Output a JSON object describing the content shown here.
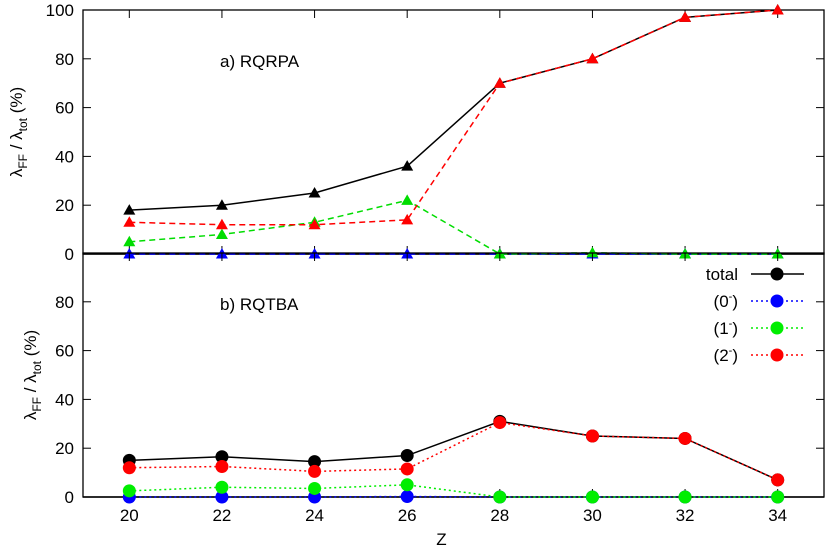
{
  "chart_data": [
    {
      "type": "line",
      "title": "a) RQRPA",
      "xlabel": "",
      "ylabel": "λ_FF / λ_tot (%)",
      "ylabel_main": "λ",
      "ylabel_sub1": "FF",
      "ylabel_mid": " / λ",
      "ylabel_sub2": "tot",
      "ylabel_tail": " (%)",
      "xlim": [
        19,
        35
      ],
      "ylim": [
        0,
        100
      ],
      "yticks": [
        0,
        20,
        40,
        60,
        80,
        100
      ],
      "marker": "triangle",
      "line_style": "dashed",
      "series": [
        {
          "key": "total",
          "color": "#000000",
          "x": [
            20,
            22,
            24,
            26,
            28,
            30,
            32,
            34
          ],
          "values": [
            18,
            20,
            25,
            36,
            70,
            80,
            97,
            100
          ]
        },
        {
          "key": "0-",
          "color": "#0000ff",
          "x": [
            20,
            22,
            24,
            26,
            28,
            30,
            32,
            34
          ],
          "values": [
            0,
            0,
            0,
            0,
            0,
            0,
            0,
            0
          ]
        },
        {
          "key": "1-",
          "color": "#00dd00",
          "x": [
            20,
            22,
            24,
            26,
            28,
            30,
            32,
            34
          ],
          "values": [
            5,
            8,
            13,
            22,
            0,
            0.5,
            0,
            0
          ]
        },
        {
          "key": "2-",
          "color": "#ff0000",
          "x": [
            20,
            22,
            24,
            26,
            28,
            30,
            32,
            34
          ],
          "values": [
            13,
            12,
            12,
            14,
            70,
            80,
            97,
            100
          ]
        }
      ]
    },
    {
      "type": "line",
      "title": "b) RQTBA",
      "xlabel": "Z",
      "ylabel": "λ_FF / λ_tot (%)",
      "ylabel_main": "λ",
      "ylabel_sub1": "FF",
      "ylabel_mid": " / λ",
      "ylabel_sub2": "tot",
      "ylabel_tail": " (%)",
      "xlim": [
        19,
        35
      ],
      "ylim": [
        0,
        100
      ],
      "xticks": [
        20,
        22,
        24,
        26,
        28,
        30,
        32,
        34
      ],
      "yticks": [
        0,
        20,
        40,
        60,
        80
      ],
      "marker": "circle",
      "line_style": "dotted",
      "legend_position": "top-right",
      "series": [
        {
          "key": "total",
          "name": "total",
          "name_main": "total",
          "name_sup": "",
          "name_tail": "",
          "color": "#000000",
          "x": [
            20,
            22,
            24,
            26,
            28,
            30,
            32,
            34
          ],
          "values": [
            15,
            16.5,
            14.5,
            17,
            31,
            25,
            24,
            7
          ]
        },
        {
          "key": "0-",
          "name": "(0-)",
          "name_main": "(0",
          "name_sup": "-",
          "name_tail": ")",
          "color": "#0000ff",
          "x": [
            20,
            22,
            24,
            26,
            28,
            30,
            32,
            34
          ],
          "values": [
            0,
            0,
            0,
            0.2,
            0,
            0,
            0,
            0
          ]
        },
        {
          "key": "1-",
          "name": "(1-)",
          "name_main": "(1",
          "name_sup": "-",
          "name_tail": ")",
          "color": "#00ee00",
          "x": [
            20,
            22,
            24,
            26,
            28,
            30,
            32,
            34
          ],
          "values": [
            2.5,
            4,
            3.5,
            5,
            0,
            0,
            0,
            0
          ]
        },
        {
          "key": "2-",
          "name": "(2-)",
          "name_main": "(2",
          "name_sup": "-",
          "name_tail": ")",
          "color": "#ff0000",
          "x": [
            20,
            22,
            24,
            26,
            28,
            30,
            32,
            34
          ],
          "values": [
            12,
            12.5,
            10.5,
            11.5,
            30.5,
            25,
            24,
            7
          ]
        }
      ]
    }
  ]
}
